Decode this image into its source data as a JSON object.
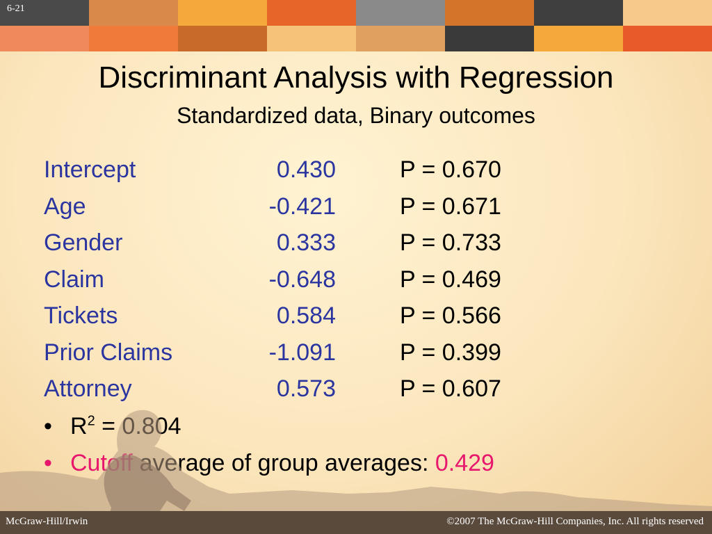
{
  "slide_number": "6-21",
  "title": "Discriminant Analysis with Regression",
  "subtitle": "Standardized data, Binary outcomes",
  "rows": [
    {
      "variable": "Intercept",
      "coefficient": "0.430",
      "p_value": "P = 0.670"
    },
    {
      "variable": "Age",
      "coefficient": "-0.421",
      "p_value": "P = 0.671"
    },
    {
      "variable": "Gender",
      "coefficient": "0.333",
      "p_value": "P = 0.733"
    },
    {
      "variable": "Claim",
      "coefficient": "-0.648",
      "p_value": "P = 0.469"
    },
    {
      "variable": "Tickets",
      "coefficient": "0.584",
      "p_value": "P = 0.566"
    },
    {
      "variable": "Prior Claims",
      "coefficient": "-1.091",
      "p_value": "P = 0.399"
    },
    {
      "variable": "Attorney",
      "coefficient": "0.573",
      "p_value": "P = 0.607"
    }
  ],
  "bullets": {
    "r2": {
      "label": "R",
      "superscript": "2",
      "rest": " = 0.804"
    },
    "cutoff": {
      "highlight": "Cutoff",
      "text": " average of group averages: ",
      "value": "0.429"
    }
  },
  "footer": {
    "left": "McGraw-Hill/Irwin",
    "right": "©2007 The McGraw-Hill Companies, Inc.  All rights reserved"
  },
  "colors": {
    "variable_text": "#2b35a0",
    "highlight": "#e8176d",
    "banner_tiles": [
      "#4a4a4a",
      "#d98a4a",
      "#f5a93a",
      "#e8652a",
      "#8a8a8a",
      "#d4732a",
      "#3f3f3f",
      "#f7c98a",
      "#f08a5a",
      "#f07a3a",
      "#c86a2a",
      "#f5c27a",
      "#e0a060",
      "#3a3a3a",
      "#f5a93a",
      "#e85a2a"
    ]
  }
}
